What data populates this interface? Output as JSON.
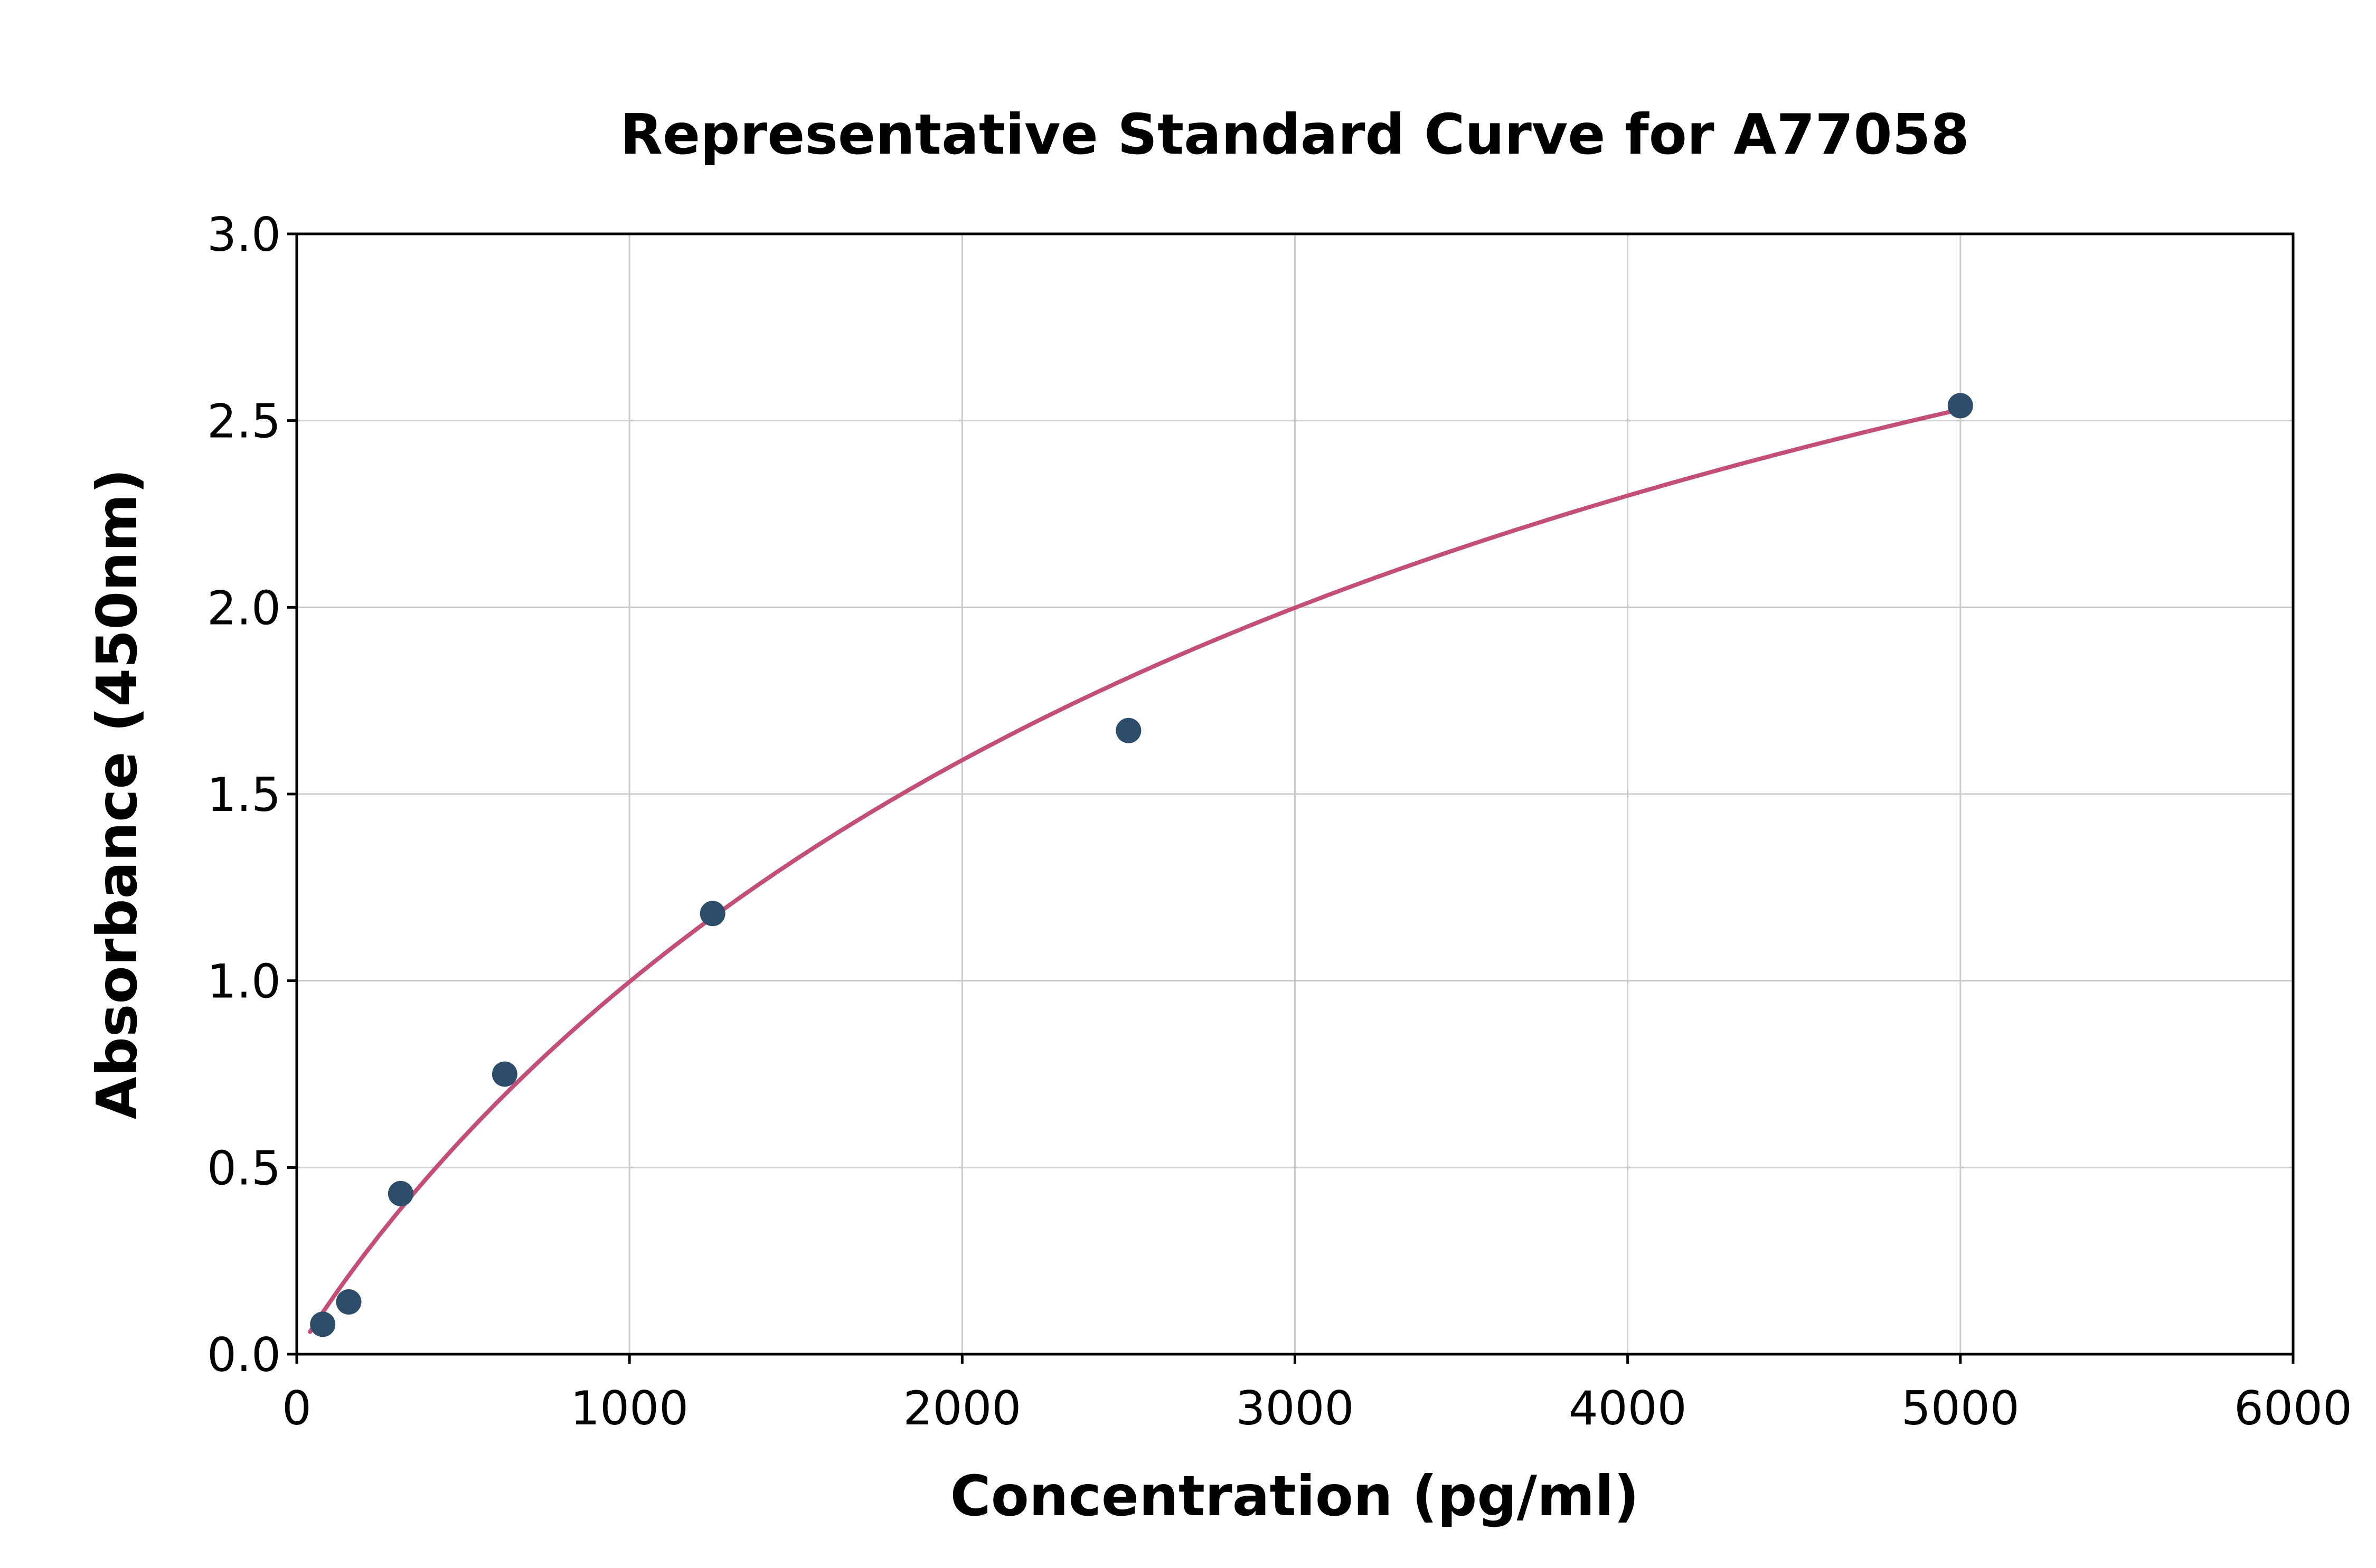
{
  "chart_data": {
    "type": "scatter",
    "title": "Representative Standard Curve for A77058",
    "xlabel": "Concentration (pg/ml)",
    "ylabel": "Absorbance (450nm)",
    "xlim": [
      0,
      6000
    ],
    "ylim": [
      0,
      3.0
    ],
    "grid": true,
    "legend": "none",
    "x_ticks": [
      0,
      1000,
      2000,
      3000,
      4000,
      5000,
      6000
    ],
    "x_tick_labels": [
      "0",
      "1000",
      "2000",
      "3000",
      "4000",
      "5000",
      "6000"
    ],
    "y_ticks": [
      0.0,
      0.5,
      1.0,
      1.5,
      2.0,
      2.5,
      3.0
    ],
    "y_tick_labels": [
      "0.0",
      "0.5",
      "1.0",
      "1.5",
      "2.0",
      "2.5",
      "3.0"
    ],
    "points": [
      {
        "x": 78.1,
        "y": 0.08
      },
      {
        "x": 156.3,
        "y": 0.14
      },
      {
        "x": 312.5,
        "y": 0.43
      },
      {
        "x": 625,
        "y": 0.75
      },
      {
        "x": 1250,
        "y": 1.18
      },
      {
        "x": 2500,
        "y": 1.67
      },
      {
        "x": 5000,
        "y": 2.54
      }
    ],
    "fit_curve": {
      "model": "4PL",
      "a": 0.0,
      "b": 0.95,
      "c": 3643,
      "d": 4.4025,
      "x_start": 40,
      "x_end": 5000
    },
    "colors": {
      "points": "#2e4d6b",
      "curve": "#c34f76",
      "grid": "#cccccc",
      "axis": "#000000",
      "background": "#ffffff",
      "text": "#000000"
    }
  }
}
